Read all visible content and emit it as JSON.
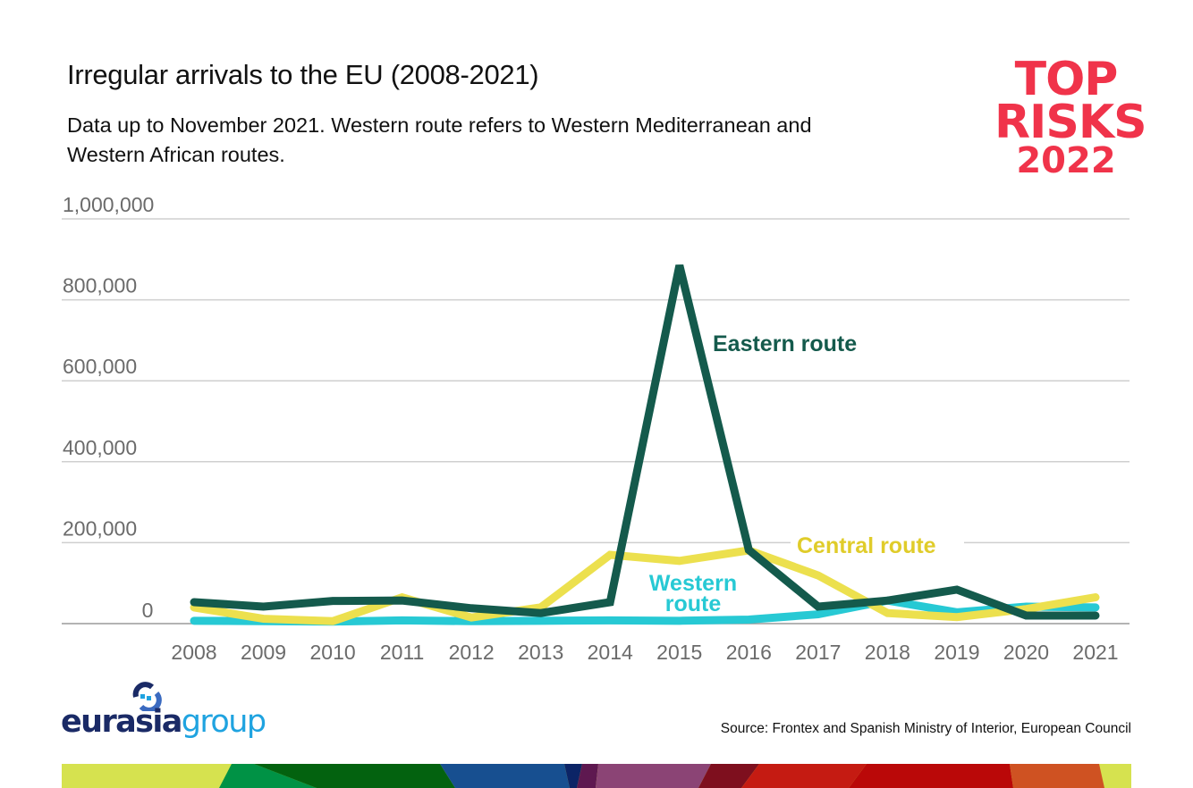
{
  "header": {
    "title": "Irregular arrivals to the EU (2008-2021)",
    "subtitle": "Data up to November 2021. Western route refers to Western Mediterranean and Western African routes."
  },
  "brand": {
    "line1": "TOP",
    "line2": "RISKS",
    "line3": "2022",
    "color": "#f0334a"
  },
  "footer": {
    "logo_part1": "eurasia",
    "logo_part2": "group",
    "logo_icon": "circular-arrows-icon",
    "source": "Source: Frontex and Spanish Ministry of Interior, European Council"
  },
  "chart_data": {
    "type": "line",
    "title": "Irregular arrivals to the EU (2008-2021)",
    "xlabel": "",
    "ylabel": "",
    "x": [
      "2008",
      "2009",
      "2010",
      "2011",
      "2012",
      "2013",
      "2014",
      "2015",
      "2016",
      "2017",
      "2018",
      "2019",
      "2020",
      "2021"
    ],
    "ylim": [
      0,
      1000000
    ],
    "yticks": [
      0,
      200000,
      400000,
      600000,
      800000,
      1000000
    ],
    "ytick_labels": [
      "0",
      "200,000",
      "400,000",
      "600,000",
      "800,000",
      "1,000,000"
    ],
    "grid": true,
    "legend": "inline-labels",
    "series": [
      {
        "name": "Western route",
        "label": "Western route",
        "color": "#27c9d4",
        "label_color": "#27c9d4",
        "values": [
          7000,
          6000,
          5000,
          8000,
          6000,
          7000,
          8000,
          7000,
          10000,
          23000,
          57000,
          28000,
          42000,
          40000
        ]
      },
      {
        "name": "Central route",
        "label": "Central route",
        "color": "#ece04e",
        "label_color": "#e0cc2a",
        "values": [
          40000,
          12000,
          6000,
          65000,
          15000,
          40000,
          170000,
          155000,
          181000,
          119000,
          26000,
          16000,
          36000,
          65000
        ]
      },
      {
        "name": "Eastern route",
        "label": "Eastern route",
        "color": "#145a4c",
        "label_color": "#145a4c",
        "values": [
          53000,
          42000,
          56000,
          57000,
          38000,
          26000,
          53000,
          885000,
          182000,
          42000,
          57000,
          84000,
          20000,
          20000
        ]
      }
    ]
  }
}
